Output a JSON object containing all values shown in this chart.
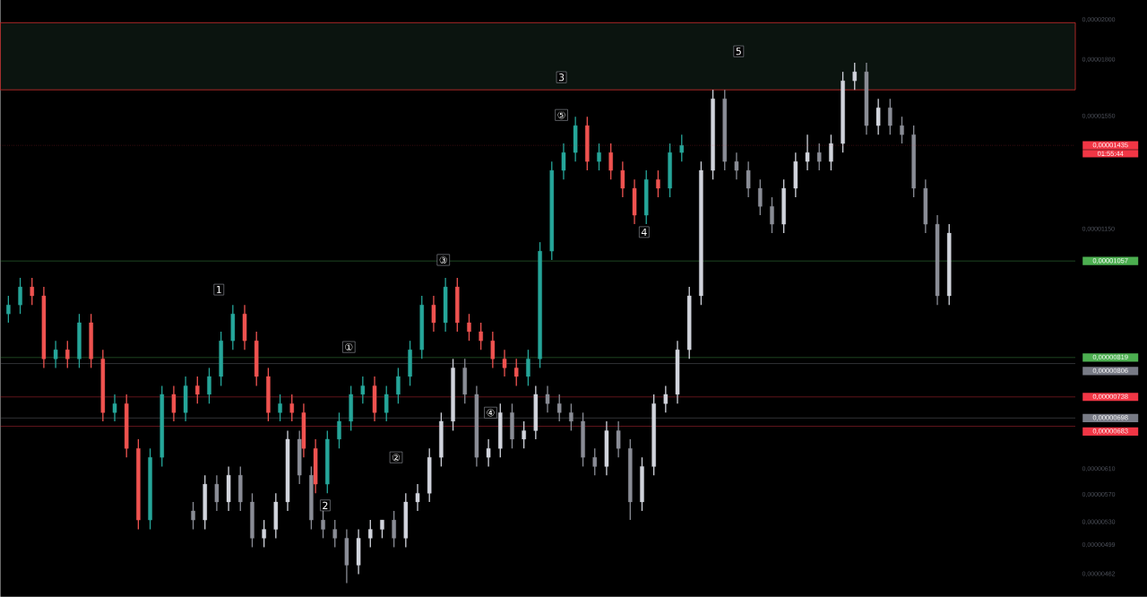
{
  "chart_data": {
    "type": "candlestick",
    "log": true,
    "tick_labels": "y",
    "grid": false,
    "categories": [
      null,
      null,
      null,
      null,
      null,
      null,
      null,
      null,
      null,
      null,
      null,
      null,
      null,
      null,
      null,
      null,
      null,
      null,
      null,
      null,
      null,
      null,
      null,
      null,
      null,
      null,
      null,
      null,
      null,
      null,
      null,
      null,
      null,
      null,
      null,
      null,
      null,
      null,
      null,
      null,
      null,
      null,
      null,
      null,
      null,
      null,
      null,
      null,
      null,
      null,
      null,
      null,
      null,
      null,
      null,
      null,
      null,
      null,
      null,
      null,
      null,
      null,
      null,
      null,
      null,
      null,
      null,
      null,
      null,
      null,
      null,
      null,
      null,
      null,
      null,
      null,
      null,
      null,
      null,
      null,
      null,
      null,
      null,
      null,
      null,
      null,
      null,
      null,
      null,
      null,
      null
    ],
    "ylim": [
      4.35e-06,
      2.107e-05
    ],
    "yticks": [
      {
        "value": 2e-05,
        "label": "0,00002000"
      },
      {
        "value": 1.8e-05,
        "label": "0,00001800"
      },
      {
        "value": 1.55e-05,
        "label": "0,00001550"
      },
      {
        "value": 1.15e-05,
        "label": "0,00001150"
      },
      {
        "value": 6.1e-06,
        "label": "0,00000610"
      },
      {
        "value": 5.7e-06,
        "label": "0,00000570"
      },
      {
        "value": 5.3e-06,
        "label": "0,00000530"
      },
      {
        "value": 4.99e-06,
        "label": "0,00000499"
      },
      {
        "value": 4.62e-06,
        "label": "0,00000462"
      }
    ],
    "bands": [
      {
        "axis": "y",
        "from": 1.662e-05,
        "to": 1.985e-05,
        "color": "#d32f2f"
      }
    ],
    "ref_lines": [
      {
        "axis": "y",
        "value": 1.435e-05,
        "label": "0,00001435",
        "color": "#f23645",
        "line_style": "dotted"
      },
      {
        "axis": "y",
        "value": 1.057e-05,
        "label": "0,00001057",
        "color": "#4caf50"
      },
      {
        "axis": "y",
        "value": 8.19e-06,
        "label": "0,00000819",
        "color": "#4caf50"
      },
      {
        "axis": "y",
        "value": 8.06e-06,
        "label": "0,00000806",
        "color": "#787b86"
      },
      {
        "axis": "y",
        "value": 7.38e-06,
        "label": "0,00000738",
        "color": "#f23645"
      },
      {
        "axis": "y",
        "value": 6.98e-06,
        "label": "0,00000698",
        "color": "#787b86"
      },
      {
        "axis": "y",
        "value": 6.83e-06,
        "label": "0,00000683",
        "color": "#f23645"
      }
    ],
    "annotations": [
      "01:55:44",
      {
        "text": "1",
        "y": 9.8e-06
      },
      {
        "text": "2",
        "y": 5.54e-06
      },
      {
        "text": "3",
        "y": 1.718e-05
      },
      {
        "text": "4",
        "y": 1.141e-05
      },
      {
        "text": "5",
        "y": 1.84e-05
      },
      {
        "text": "①",
        "y": 8.42e-06
      },
      {
        "text": "②",
        "y": 6.29e-06
      },
      {
        "text": "③",
        "y": 1.06e-05
      },
      {
        "text": "④",
        "y": 7.08e-06
      },
      {
        "text": "⑤",
        "y": 1.555e-05
      }
    ],
    "series": [
      {
        "colors": [
          null,
          null,
          null,
          null,
          null,
          null,
          null,
          null,
          null,
          null,
          null,
          null,
          null,
          null,
          null,
          null,
          "#8a8d96",
          "#d1d4dc",
          "#8a8d96",
          "#d1d4dc",
          "#8a8d96",
          "#8a8d96",
          "#d1d4dc",
          "#d1d4dc",
          "#d1d4dc",
          "#8a8d96",
          "#8a8d96",
          "#8a8d96",
          "#8a8d96",
          "#8a8d96",
          "#d1d4dc",
          "#d1d4dc",
          "#d1d4dc",
          "#8a8d96",
          "#d1d4dc",
          "#d1d4dc",
          "#d1d4dc",
          "#d1d4dc",
          "#d1d4dc",
          "#8a8d96",
          "#8a8d96",
          "#d1d4dc",
          "#d1d4dc",
          "#8a8d96",
          "#d1d4dc",
          "#d1d4dc",
          "#8a8d96",
          "#8a8d96",
          "#8a8d96",
          "#8a8d96",
          "#8a8d96",
          "#d1d4dc",
          "#8a8d96",
          "#8a8d96",
          "#d1d4dc",
          "#d1d4dc",
          "#d1d4dc",
          "#d1d4dc",
          "#d1d4dc",
          "#d1d4dc",
          "#d1d4dc",
          "#8a8d96",
          "#8a8d96",
          "#8a8d96",
          "#8a8d96",
          "#8a8d96",
          "#d1d4dc",
          "#d1d4dc",
          "#d1d4dc",
          "#8a8d96",
          "#d1d4dc",
          "#d1d4dc",
          "#d1d4dc",
          "#8a8d96",
          "#d1d4dc",
          "#8a8d96",
          "#8a8d96",
          "#8a8d96",
          "#8a8d96",
          "#8a8d96",
          "#d1d4dc",
          null,
          null,
          null,
          null,
          null,
          null,
          null,
          null,
          null,
          null
        ],
        "ohlc": [
          null,
          null,
          null,
          null,
          null,
          null,
          null,
          null,
          null,
          null,
          null,
          null,
          null,
          null,
          null,
          null,
          [
            5.46e-06,
            5.59e-06,
            5.2e-06,
            5.33e-06
          ],
          [
            5.33e-06,
            6e-06,
            5.2e-06,
            5.86e-06
          ],
          [
            5.86e-06,
            6e-06,
            5.46e-06,
            5.59e-06
          ],
          [
            5.59e-06,
            6.14e-06,
            5.46e-06,
            6e-06
          ],
          [
            6e-06,
            6.14e-06,
            5.46e-06,
            5.59e-06
          ],
          [
            5.59e-06,
            5.72e-06,
            4.96e-06,
            5.08e-06
          ],
          [
            5.08e-06,
            5.33e-06,
            4.96e-06,
            5.2e-06
          ],
          [
            5.2e-06,
            5.72e-06,
            5.08e-06,
            5.59e-06
          ],
          [
            5.59e-06,
            6.75e-06,
            5.46e-06,
            6.6e-06
          ],
          [
            6.6e-06,
            6.75e-06,
            5.86e-06,
            6e-06
          ],
          [
            6e-06,
            6.14e-06,
            5.2e-06,
            5.33e-06
          ],
          [
            5.33e-06,
            5.46e-06,
            5.08e-06,
            5.2e-06
          ],
          [
            5.2e-06,
            5.33e-06,
            4.96e-06,
            5.08e-06
          ],
          [
            5.08e-06,
            5.2e-06,
            4.51e-06,
            4.73e-06
          ],
          [
            4.73e-06,
            5.2e-06,
            4.62e-06,
            5.08e-06
          ],
          [
            5.08e-06,
            5.33e-06,
            4.96e-06,
            5.2e-06
          ],
          [
            5.2e-06,
            5.33e-06,
            5.08e-06,
            5.33e-06
          ],
          [
            5.33e-06,
            5.46e-06,
            4.96e-06,
            5.08e-06
          ],
          [
            5.08e-06,
            5.72e-06,
            4.96e-06,
            5.59e-06
          ],
          [
            5.59e-06,
            5.86e-06,
            5.46e-06,
            5.72e-06
          ],
          [
            5.72e-06,
            6.44e-06,
            5.59e-06,
            6.29e-06
          ],
          [
            6.29e-06,
            7.08e-06,
            6.14e-06,
            6.92e-06
          ],
          [
            6.92e-06,
            8.16e-06,
            6.75e-06,
            7.97e-06
          ],
          [
            7.97e-06,
            8.16e-06,
            7.25e-06,
            7.43e-06
          ],
          [
            7.43e-06,
            7.6e-06,
            6.14e-06,
            6.29e-06
          ],
          [
            6.29e-06,
            6.6e-06,
            6.14e-06,
            6.44e-06
          ],
          [
            6.44e-06,
            7.25e-06,
            6.29e-06,
            7.08e-06
          ],
          [
            7.08e-06,
            7.25e-06,
            6.44e-06,
            6.6e-06
          ],
          [
            6.6e-06,
            6.92e-06,
            6.44e-06,
            6.75e-06
          ],
          [
            6.75e-06,
            7.6e-06,
            6.6e-06,
            7.43e-06
          ],
          [
            7.43e-06,
            7.6e-06,
            7.08e-06,
            7.25e-06
          ],
          [
            7.25e-06,
            7.43e-06,
            6.92e-06,
            7.08e-06
          ],
          [
            7.08e-06,
            7.25e-06,
            6.75e-06,
            6.92e-06
          ],
          [
            6.92e-06,
            7.08e-06,
            6.14e-06,
            6.29e-06
          ],
          [
            6.29e-06,
            6.44e-06,
            6e-06,
            6.14e-06
          ],
          [
            6.14e-06,
            6.92e-06,
            6e-06,
            6.75e-06
          ],
          [
            6.75e-06,
            6.92e-06,
            6.29e-06,
            6.44e-06
          ],
          [
            6.44e-06,
            6.6e-06,
            5.33e-06,
            5.59e-06
          ],
          [
            5.59e-06,
            6.29e-06,
            5.46e-06,
            6.14e-06
          ],
          [
            6.14e-06,
            7.43e-06,
            6e-06,
            7.25e-06
          ],
          [
            7.25e-06,
            7.6e-06,
            7.08e-06,
            7.43e-06
          ],
          [
            7.43e-06,
            8.56e-06,
            7.25e-06,
            8.36e-06
          ],
          [
            8.36e-06,
            9.87e-06,
            8.16e-06,
            9.64e-06
          ],
          [
            9.64e-06,
            1.375e-05,
            9.41e-06,
            1.343e-05
          ],
          [
            1.343e-05,
            1.662e-05,
            1.311e-05,
            1.623e-05
          ],
          [
            1.623e-05,
            1.662e-05,
            1.343e-05,
            1.375e-05
          ],
          [
            1.375e-05,
            1.408e-05,
            1.311e-05,
            1.343e-05
          ],
          [
            1.343e-05,
            1.375e-05,
            1.251e-05,
            1.281e-05
          ],
          [
            1.281e-05,
            1.311e-05,
            1.193e-05,
            1.221e-05
          ],
          [
            1.221e-05,
            1.251e-05,
            1.138e-05,
            1.165e-05
          ],
          [
            1.165e-05,
            1.311e-05,
            1.138e-05,
            1.281e-05
          ],
          [
            1.281e-05,
            1.408e-05,
            1.251e-05,
            1.375e-05
          ],
          [
            1.375e-05,
            1.476e-05,
            1.343e-05,
            1.408e-05
          ],
          [
            1.408e-05,
            1.442e-05,
            1.343e-05,
            1.375e-05
          ],
          [
            1.375e-05,
            1.476e-05,
            1.343e-05,
            1.442e-05
          ],
          [
            1.442e-05,
            1.743e-05,
            1.408e-05,
            1.702e-05
          ],
          [
            1.702e-05,
            1.785e-05,
            1.662e-05,
            1.743e-05
          ],
          [
            1.743e-05,
            1.785e-05,
            1.476e-05,
            1.512e-05
          ],
          [
            1.512e-05,
            1.623e-05,
            1.476e-05,
            1.585e-05
          ],
          [
            1.585e-05,
            1.623e-05,
            1.476e-05,
            1.512e-05
          ],
          [
            1.512e-05,
            1.548e-05,
            1.442e-05,
            1.476e-05
          ],
          [
            1.476e-05,
            1.512e-05,
            1.251e-05,
            1.281e-05
          ],
          [
            1.281e-05,
            1.311e-05,
            1.138e-05,
            1.165e-05
          ],
          [
            1.165e-05,
            1.193e-05,
            9.41e-06,
            9.64e-06
          ],
          [
            9.64e-06,
            1.165e-05,
            9.41e-06,
            1.138e-05
          ],
          null,
          null,
          null,
          null,
          null,
          null,
          null,
          null,
          null,
          null
        ]
      },
      {
        "colors": [
          "#26a69a",
          "#26a69a",
          "#ef5350",
          "#ef5350",
          "#26a69a",
          "#ef5350",
          "#26a69a",
          "#ef5350",
          "#ef5350",
          "#26a69a",
          "#ef5350",
          "#ef5350",
          "#26a69a",
          "#26a69a",
          "#ef5350",
          "#26a69a",
          "#ef5350",
          "#26a69a",
          "#26a69a",
          "#26a69a",
          "#ef5350",
          "#ef5350",
          "#ef5350",
          "#26a69a",
          "#ef5350",
          "#ef5350",
          "#ef5350",
          "#26a69a",
          "#26a69a",
          "#26a69a",
          "#26a69a",
          "#ef5350",
          "#26a69a",
          "#26a69a",
          "#26a69a",
          "#26a69a",
          "#ef5350",
          "#26a69a",
          "#ef5350",
          "#ef5350",
          "#ef5350",
          "#ef5350",
          "#ef5350",
          "#ef5350",
          "#26a69a",
          "#26a69a",
          "#26a69a",
          "#26a69a",
          "#26a69a",
          "#ef5350",
          "#26a69a",
          "#ef5350",
          "#ef5350",
          "#ef5350",
          "#26a69a",
          "#ef5350",
          "#26a69a",
          "#26a69a",
          null,
          null,
          null,
          null,
          null,
          null,
          null,
          null,
          null,
          null,
          null,
          null,
          null,
          null,
          null,
          null,
          null,
          null,
          null,
          null,
          null,
          null,
          null,
          null,
          null,
          null,
          null,
          null,
          null,
          null,
          null,
          null,
          null
        ],
        "ohlc": [
          [
            9.19e-06,
            9.64e-06,
            8.98e-06,
            9.41e-06
          ],
          [
            9.41e-06,
            1.011e-05,
            9.19e-06,
            9.87e-06
          ],
          [
            9.87e-06,
            1.011e-05,
            9.41e-06,
            9.64e-06
          ],
          [
            9.64e-06,
            9.87e-06,
            7.97e-06,
            8.16e-06
          ],
          [
            8.16e-06,
            8.56e-06,
            7.97e-06,
            8.36e-06
          ],
          [
            8.36e-06,
            8.56e-06,
            7.97e-06,
            8.16e-06
          ],
          [
            8.16e-06,
            9.19e-06,
            7.97e-06,
            8.98e-06
          ],
          [
            8.98e-06,
            9.19e-06,
            7.97e-06,
            8.16e-06
          ],
          [
            8.16e-06,
            8.36e-06,
            6.92e-06,
            7.08e-06
          ],
          [
            7.08e-06,
            7.43e-06,
            6.92e-06,
            7.25e-06
          ],
          [
            7.25e-06,
            7.43e-06,
            6.29e-06,
            6.44e-06
          ],
          [
            6.44e-06,
            6.6e-06,
            5.2e-06,
            5.33e-06
          ],
          [
            5.33e-06,
            6.44e-06,
            5.2e-06,
            6.29e-06
          ],
          [
            6.29e-06,
            7.6e-06,
            6.14e-06,
            7.43e-06
          ],
          [
            7.43e-06,
            7.6e-06,
            6.92e-06,
            7.08e-06
          ],
          [
            7.08e-06,
            7.79e-06,
            6.92e-06,
            7.6e-06
          ],
          [
            7.6e-06,
            7.79e-06,
            7.25e-06,
            7.43e-06
          ],
          [
            7.43e-06,
            7.97e-06,
            7.25e-06,
            7.79e-06
          ],
          [
            7.79e-06,
            8.77e-06,
            7.6e-06,
            8.56e-06
          ],
          [
            8.56e-06,
            9.41e-06,
            8.36e-06,
            9.19e-06
          ],
          [
            9.19e-06,
            9.41e-06,
            8.36e-06,
            8.56e-06
          ],
          [
            8.56e-06,
            8.77e-06,
            7.6e-06,
            7.79e-06
          ],
          [
            7.79e-06,
            7.97e-06,
            6.92e-06,
            7.08e-06
          ],
          [
            7.08e-06,
            7.43e-06,
            6.92e-06,
            7.25e-06
          ],
          [
            7.25e-06,
            7.43e-06,
            6.92e-06,
            7.08e-06
          ],
          [
            7.08e-06,
            7.25e-06,
            6.29e-06,
            6.44e-06
          ],
          [
            6.44e-06,
            6.6e-06,
            5.72e-06,
            5.86e-06
          ],
          [
            5.86e-06,
            6.75e-06,
            5.72e-06,
            6.6e-06
          ],
          [
            6.6e-06,
            7.08e-06,
            6.44e-06,
            6.92e-06
          ],
          [
            6.92e-06,
            7.6e-06,
            6.75e-06,
            7.43e-06
          ],
          [
            7.43e-06,
            7.79e-06,
            7.25e-06,
            7.6e-06
          ],
          [
            7.6e-06,
            7.79e-06,
            6.92e-06,
            7.08e-06
          ],
          [
            7.08e-06,
            7.6e-06,
            6.92e-06,
            7.43e-06
          ],
          [
            7.43e-06,
            7.97e-06,
            7.25e-06,
            7.79e-06
          ],
          [
            7.79e-06,
            8.56e-06,
            7.6e-06,
            8.36e-06
          ],
          [
            8.36e-06,
            9.64e-06,
            8.16e-06,
            9.41e-06
          ],
          [
            9.41e-06,
            9.64e-06,
            8.77e-06,
            8.98e-06
          ],
          [
            8.98e-06,
            1.011e-05,
            8.77e-06,
            9.87e-06
          ],
          [
            9.87e-06,
            1.011e-05,
            8.77e-06,
            8.98e-06
          ],
          [
            8.98e-06,
            9.19e-06,
            8.56e-06,
            8.77e-06
          ],
          [
            8.77e-06,
            8.98e-06,
            8.36e-06,
            8.56e-06
          ],
          [
            8.56e-06,
            8.77e-06,
            7.97e-06,
            8.16e-06
          ],
          [
            8.16e-06,
            8.36e-06,
            7.79e-06,
            7.97e-06
          ],
          [
            7.97e-06,
            8.16e-06,
            7.6e-06,
            7.79e-06
          ],
          [
            7.79e-06,
            8.36e-06,
            7.6e-06,
            8.16e-06
          ],
          [
            8.16e-06,
            1.111e-05,
            7.97e-06,
            1.085e-05
          ],
          [
            1.085e-05,
            1.375e-05,
            1.06e-05,
            1.343e-05
          ],
          [
            1.343e-05,
            1.442e-05,
            1.311e-05,
            1.408e-05
          ],
          [
            1.408e-05,
            1.548e-05,
            1.375e-05,
            1.512e-05
          ],
          [
            1.512e-05,
            1.548e-05,
            1.343e-05,
            1.375e-05
          ],
          [
            1.375e-05,
            1.442e-05,
            1.343e-05,
            1.408e-05
          ],
          [
            1.408e-05,
            1.442e-05,
            1.311e-05,
            1.343e-05
          ],
          [
            1.343e-05,
            1.375e-05,
            1.251e-05,
            1.281e-05
          ],
          [
            1.281e-05,
            1.311e-05,
            1.165e-05,
            1.193e-05
          ],
          [
            1.193e-05,
            1.343e-05,
            1.165e-05,
            1.311e-05
          ],
          [
            1.311e-05,
            1.343e-05,
            1.251e-05,
            1.281e-05
          ],
          [
            1.281e-05,
            1.442e-05,
            1.251e-05,
            1.408e-05
          ],
          [
            1.408e-05,
            1.476e-05,
            1.375e-05,
            1.435e-05
          ],
          null,
          null,
          null,
          null,
          null,
          null,
          null,
          null,
          null,
          null,
          null,
          null,
          null,
          null,
          null,
          null,
          null,
          null,
          null,
          null,
          null,
          null,
          null,
          null,
          null,
          null,
          null,
          null,
          null,
          null,
          null,
          null,
          null
        ]
      }
    ]
  }
}
